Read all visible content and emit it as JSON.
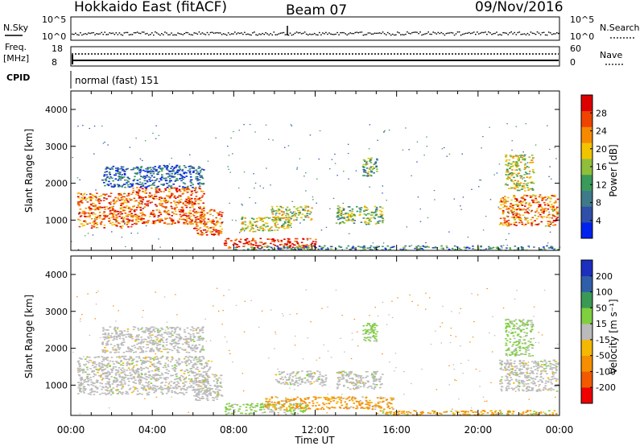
{
  "header": {
    "title": "Hokkaido East (fitACF)",
    "beam": "Beam 07",
    "date": "09/Nov/2016"
  },
  "strip_panels": {
    "nsky_label": "N.Sky",
    "nsky_ticks": [
      "10^5",
      "10^0"
    ],
    "nsearch_label": "N.Search",
    "nsearch_ticks": [
      "10^5",
      "10^0"
    ],
    "freq_label_1": "Freq.",
    "freq_label_2": "[MHz]",
    "freq_ticks": [
      "18",
      "8"
    ],
    "nave_label": "Nave",
    "nave_ticks": [
      "60",
      "0"
    ],
    "cpid_label": "CPID",
    "cpid_value": "normal (fast) 151"
  },
  "chart_data": [
    {
      "type": "heatmap",
      "name": "power",
      "ylabel": "Slant Range [km]",
      "ylim": [
        180,
        4500
      ],
      "yticks": [
        "1000",
        "2000",
        "3000",
        "4000"
      ],
      "xticks": [
        "00:00",
        "04:00",
        "08:00",
        "12:00",
        "16:00",
        "20:00",
        "00:00"
      ],
      "xlim_hours": [
        0,
        24
      ],
      "colorbar_label": "Power [dB]",
      "colorbar_ticks": [
        "4",
        "8",
        "12",
        "16",
        "20",
        "24",
        "28"
      ],
      "colorbar_colors": [
        "#0022ee",
        "#2f4fa8",
        "#3f7a8a",
        "#3a9a5a",
        "#8fbf3a",
        "#f2c400",
        "#f58a00",
        "#ee4400",
        "#dd0000"
      ],
      "echo_regions": [
        {
          "t0": 0.3,
          "t1": 3.0,
          "r0": 800,
          "r1": 1750,
          "level": 0.78
        },
        {
          "t0": 3.0,
          "t1": 6.5,
          "r0": 900,
          "r1": 1900,
          "level": 0.82
        },
        {
          "t0": 6.0,
          "t1": 7.4,
          "r0": 600,
          "r1": 1300,
          "level": 0.8
        },
        {
          "t0": 1.5,
          "t1": 6.5,
          "r0": 1900,
          "r1": 2500,
          "level": 0.2
        },
        {
          "t0": 7.5,
          "t1": 12.0,
          "r0": 250,
          "r1": 520,
          "level": 0.92
        },
        {
          "t0": 8.3,
          "t1": 10.8,
          "r0": 700,
          "r1": 1100,
          "level": 0.55
        },
        {
          "t0": 9.8,
          "t1": 11.8,
          "r0": 1000,
          "r1": 1400,
          "level": 0.5
        },
        {
          "t0": 13.0,
          "t1": 15.3,
          "r0": 900,
          "r1": 1400,
          "level": 0.45
        },
        {
          "t0": 14.3,
          "t1": 15.0,
          "r0": 2200,
          "r1": 2700,
          "level": 0.4
        },
        {
          "t0": 21.0,
          "t1": 23.9,
          "r0": 850,
          "r1": 1700,
          "level": 0.75
        },
        {
          "t0": 21.3,
          "t1": 22.7,
          "r0": 1800,
          "r1": 2800,
          "level": 0.55
        },
        {
          "t0": 8.0,
          "t1": 23.9,
          "r0": 200,
          "r1": 320,
          "level": 0.3
        }
      ]
    },
    {
      "type": "heatmap",
      "name": "velocity",
      "ylabel": "Slant Range [km]",
      "ylim": [
        180,
        4500
      ],
      "yticks": [
        "1000",
        "2000",
        "3000",
        "4000"
      ],
      "xticks": [
        "00:00",
        "04:00",
        "08:00",
        "12:00",
        "16:00",
        "20:00",
        "00:00"
      ],
      "xlim_hours": [
        0,
        24
      ],
      "xlabel": "Time UT",
      "colorbar_label": "Velocity [m s⁻¹]",
      "colorbar_ticks": [
        "-200",
        "-100",
        "-50",
        "-15",
        "15",
        "50",
        "100",
        "200"
      ],
      "colorbar_colors": [
        "#ee0000",
        "#f25a00",
        "#f58e00",
        "#f5b800",
        "#bbbbbb",
        "#7fcf3f",
        "#3a9a55",
        "#2f5fa8",
        "#1d2fbf"
      ],
      "echo_regions": [
        {
          "t0": 0.3,
          "t1": 6.8,
          "r0": 750,
          "r1": 1800,
          "class": "ground"
        },
        {
          "t0": 1.5,
          "t1": 6.5,
          "r0": 1900,
          "r1": 2600,
          "class": "ground"
        },
        {
          "t0": 6.0,
          "t1": 7.4,
          "r0": 600,
          "r1": 1300,
          "class": "ground"
        },
        {
          "t0": 7.5,
          "t1": 11.5,
          "r0": 230,
          "r1": 520,
          "class": "pos_small"
        },
        {
          "t0": 9.5,
          "t1": 15.8,
          "r0": 350,
          "r1": 700,
          "class": "neg_mid"
        },
        {
          "t0": 13.0,
          "t1": 15.3,
          "r0": 900,
          "r1": 1400,
          "class": "ground"
        },
        {
          "t0": 10.0,
          "t1": 12.5,
          "r0": 1000,
          "r1": 1400,
          "class": "ground"
        },
        {
          "t0": 14.3,
          "t1": 15.0,
          "r0": 2200,
          "r1": 2700,
          "class": "pos_small"
        },
        {
          "t0": 21.0,
          "t1": 23.9,
          "r0": 850,
          "r1": 1700,
          "class": "ground"
        },
        {
          "t0": 21.3,
          "t1": 22.7,
          "r0": 1800,
          "r1": 2800,
          "class": "pos_small"
        },
        {
          "t0": 15.0,
          "t1": 23.9,
          "r0": 200,
          "r1": 330,
          "class": "neg_small"
        }
      ]
    }
  ]
}
